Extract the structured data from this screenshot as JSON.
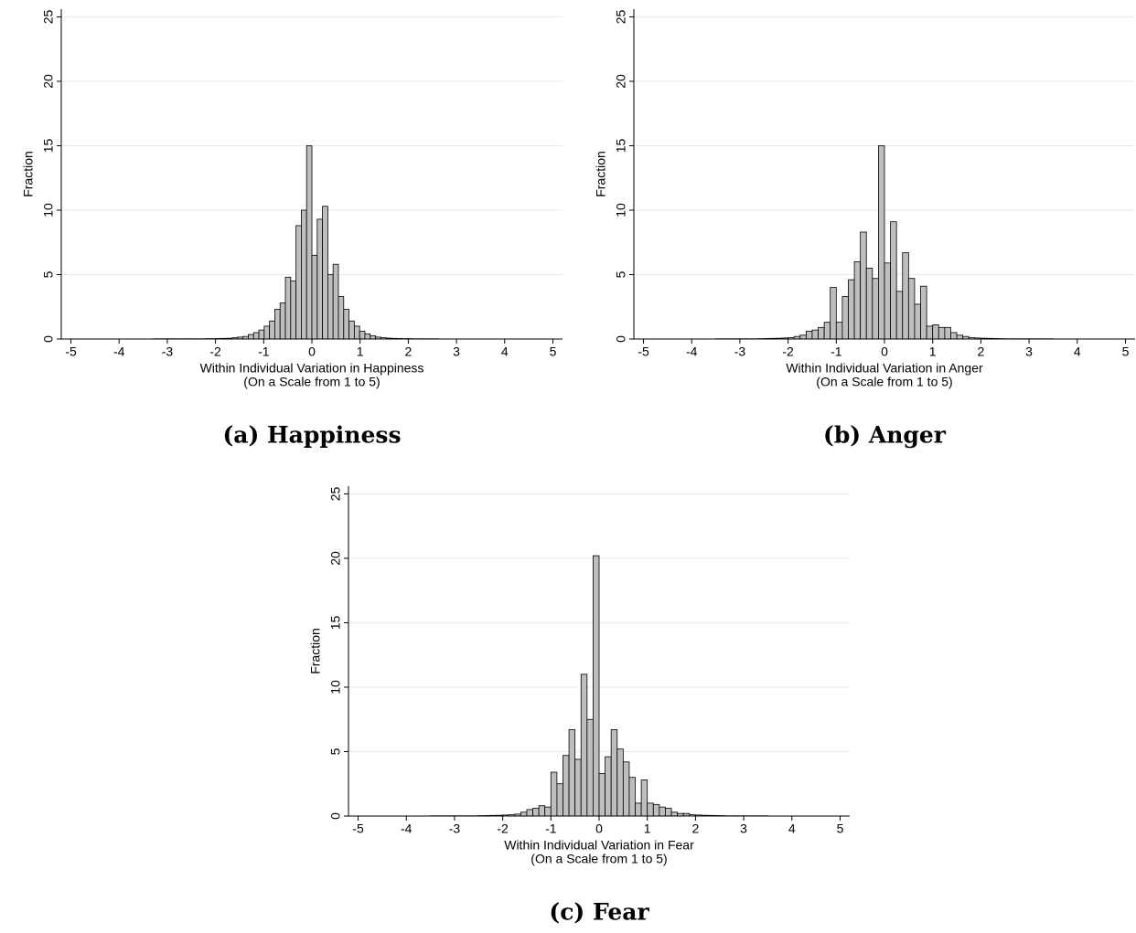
{
  "chart_data": [
    {
      "type": "histogram",
      "caption": "(a) Happiness",
      "ylabel": "Fraction",
      "xlabel": [
        "Within Individual Variation in Happiness",
        "(On a Scale from 1 to 5)"
      ],
      "color": "#bebebe",
      "edgecolor": "#000000",
      "grid": true,
      "xlim": [
        -5.2,
        5.2
      ],
      "ylim": [
        0,
        25.6
      ],
      "xticks": [
        -5,
        -4,
        -3,
        -2,
        -1,
        0,
        1,
        2,
        3,
        4,
        5
      ],
      "yticks": [
        0,
        5,
        10,
        15,
        20,
        25
      ],
      "bins": [
        -3.3,
        -3.19,
        -3.08,
        -2.97,
        -2.86,
        -2.75,
        -2.64,
        -2.53,
        -2.42,
        -2.31,
        -2.2,
        -2.09,
        -1.98,
        -1.87,
        -1.76,
        -1.65,
        -1.54,
        -1.43,
        -1.32,
        -1.21,
        -1.1,
        -0.99,
        -0.88,
        -0.77,
        -0.66,
        -0.55,
        -0.44,
        -0.33,
        -0.22,
        -0.11,
        0,
        0.11,
        0.22,
        0.33,
        0.44,
        0.55,
        0.66,
        0.77,
        0.88,
        0.99,
        1.1,
        1.21,
        1.32,
        1.43,
        1.54,
        1.65,
        1.76,
        1.87,
        1.98,
        2.09,
        2.2,
        2.31,
        2.42,
        2.53,
        2.64
      ],
      "values": [
        0.02,
        0.02,
        0.02,
        0.02,
        0.02,
        0.02,
        0.02,
        0.02,
        0.02,
        0.02,
        0.03,
        0.03,
        0.04,
        0.05,
        0.06,
        0.1,
        0.15,
        0.2,
        0.35,
        0.5,
        0.7,
        1.0,
        1.4,
        2.3,
        2.8,
        4.8,
        4.5,
        8.8,
        10,
        15,
        6.5,
        9.3,
        10.3,
        5.0,
        5.8,
        3.3,
        2.3,
        1.4,
        1.0,
        0.6,
        0.4,
        0.25,
        0.15,
        0.1,
        0.07,
        0.05,
        0.04,
        0.03,
        0.03,
        0.02,
        0.02,
        0.02,
        0.02,
        0.02
      ]
    },
    {
      "type": "histogram",
      "caption": "(b) Anger",
      "ylabel": "Fraction",
      "xlabel": [
        "Within Individual Variation in Anger",
        "(On a Scale from 1 to 5)"
      ],
      "color": "#bebebe",
      "edgecolor": "#000000",
      "grid": true,
      "xlim": [
        -5.2,
        5.2
      ],
      "ylim": [
        0,
        25.6
      ],
      "xticks": [
        -5,
        -4,
        -3,
        -2,
        -1,
        0,
        1,
        2,
        3,
        4,
        5
      ],
      "yticks": [
        0,
        5,
        10,
        15,
        20,
        25
      ],
      "bins": [
        -3.5,
        -3.375,
        -3.25,
        -3.125,
        -3,
        -2.875,
        -2.75,
        -2.625,
        -2.5,
        -2.375,
        -2.25,
        -2.125,
        -2,
        -1.875,
        -1.75,
        -1.625,
        -1.5,
        -1.375,
        -1.25,
        -1.125,
        -1,
        -0.875,
        -0.75,
        -0.625,
        -0.5,
        -0.375,
        -0.25,
        -0.125,
        0,
        0.125,
        0.25,
        0.375,
        0.5,
        0.625,
        0.75,
        0.875,
        1,
        1.125,
        1.25,
        1.375,
        1.5,
        1.625,
        1.75,
        1.875,
        2,
        2.125,
        2.25,
        2.375,
        2.5,
        2.625,
        2.75,
        2.875,
        3,
        3.125,
        3.25,
        3.375,
        3.5
      ],
      "values": [
        0.02,
        0.02,
        0.02,
        0.02,
        0.02,
        0.02,
        0.02,
        0.03,
        0.04,
        0.05,
        0.06,
        0.08,
        0.1,
        0.2,
        0.3,
        0.6,
        0.7,
        0.9,
        1.3,
        4.0,
        1.3,
        3.3,
        4.6,
        6.0,
        8.3,
        5.5,
        4.7,
        15,
        5.9,
        9.1,
        3.7,
        6.7,
        4.7,
        2.7,
        4.1,
        1.0,
        1.1,
        0.9,
        0.9,
        0.5,
        0.3,
        0.2,
        0.1,
        0.08,
        0.06,
        0.05,
        0.04,
        0.03,
        0.02,
        0.02,
        0.02,
        0.02,
        0.02,
        0.02,
        0.02,
        0.02
      ]
    },
    {
      "type": "histogram",
      "caption": "(c) Fear",
      "ylabel": "Fraction",
      "xlabel": [
        "Within Individual Variation in Fear",
        "(On a Scale from 1 to 5)"
      ],
      "color": "#bebebe",
      "edgecolor": "#000000",
      "grid": true,
      "xlim": [
        -5.2,
        5.2
      ],
      "ylim": [
        0,
        25.6
      ],
      "xticks": [
        -5,
        -4,
        -3,
        -2,
        -1,
        0,
        1,
        2,
        3,
        4,
        5
      ],
      "yticks": [
        0,
        5,
        10,
        15,
        20,
        25
      ],
      "bins": [
        -3.5,
        -3.375,
        -3.25,
        -3.125,
        -3,
        -2.875,
        -2.75,
        -2.625,
        -2.5,
        -2.375,
        -2.25,
        -2.125,
        -2,
        -1.875,
        -1.75,
        -1.625,
        -1.5,
        -1.375,
        -1.25,
        -1.125,
        -1,
        -0.875,
        -0.75,
        -0.625,
        -0.5,
        -0.375,
        -0.25,
        -0.125,
        0,
        0.125,
        0.25,
        0.375,
        0.5,
        0.625,
        0.75,
        0.875,
        1,
        1.125,
        1.25,
        1.375,
        1.5,
        1.625,
        1.75,
        1.875,
        2,
        2.125,
        2.25,
        2.375,
        2.5,
        2.625,
        2.75,
        2.875,
        3,
        3.125,
        3.25,
        3.375,
        3.5
      ],
      "values": [
        0.02,
        0.02,
        0.02,
        0.02,
        0.02,
        0.02,
        0.02,
        0.02,
        0.03,
        0.04,
        0.05,
        0.06,
        0.08,
        0.1,
        0.15,
        0.3,
        0.5,
        0.6,
        0.8,
        0.7,
        3.4,
        2.5,
        4.7,
        6.7,
        4.4,
        11,
        7.5,
        20.2,
        3.3,
        4.6,
        6.7,
        5.2,
        4.2,
        3.0,
        1.0,
        2.8,
        1.0,
        0.9,
        0.7,
        0.6,
        0.3,
        0.2,
        0.2,
        0.1,
        0.08,
        0.06,
        0.05,
        0.04,
        0.03,
        0.02,
        0.02,
        0.02,
        0.02,
        0.02,
        0.02,
        0.02
      ]
    }
  ]
}
